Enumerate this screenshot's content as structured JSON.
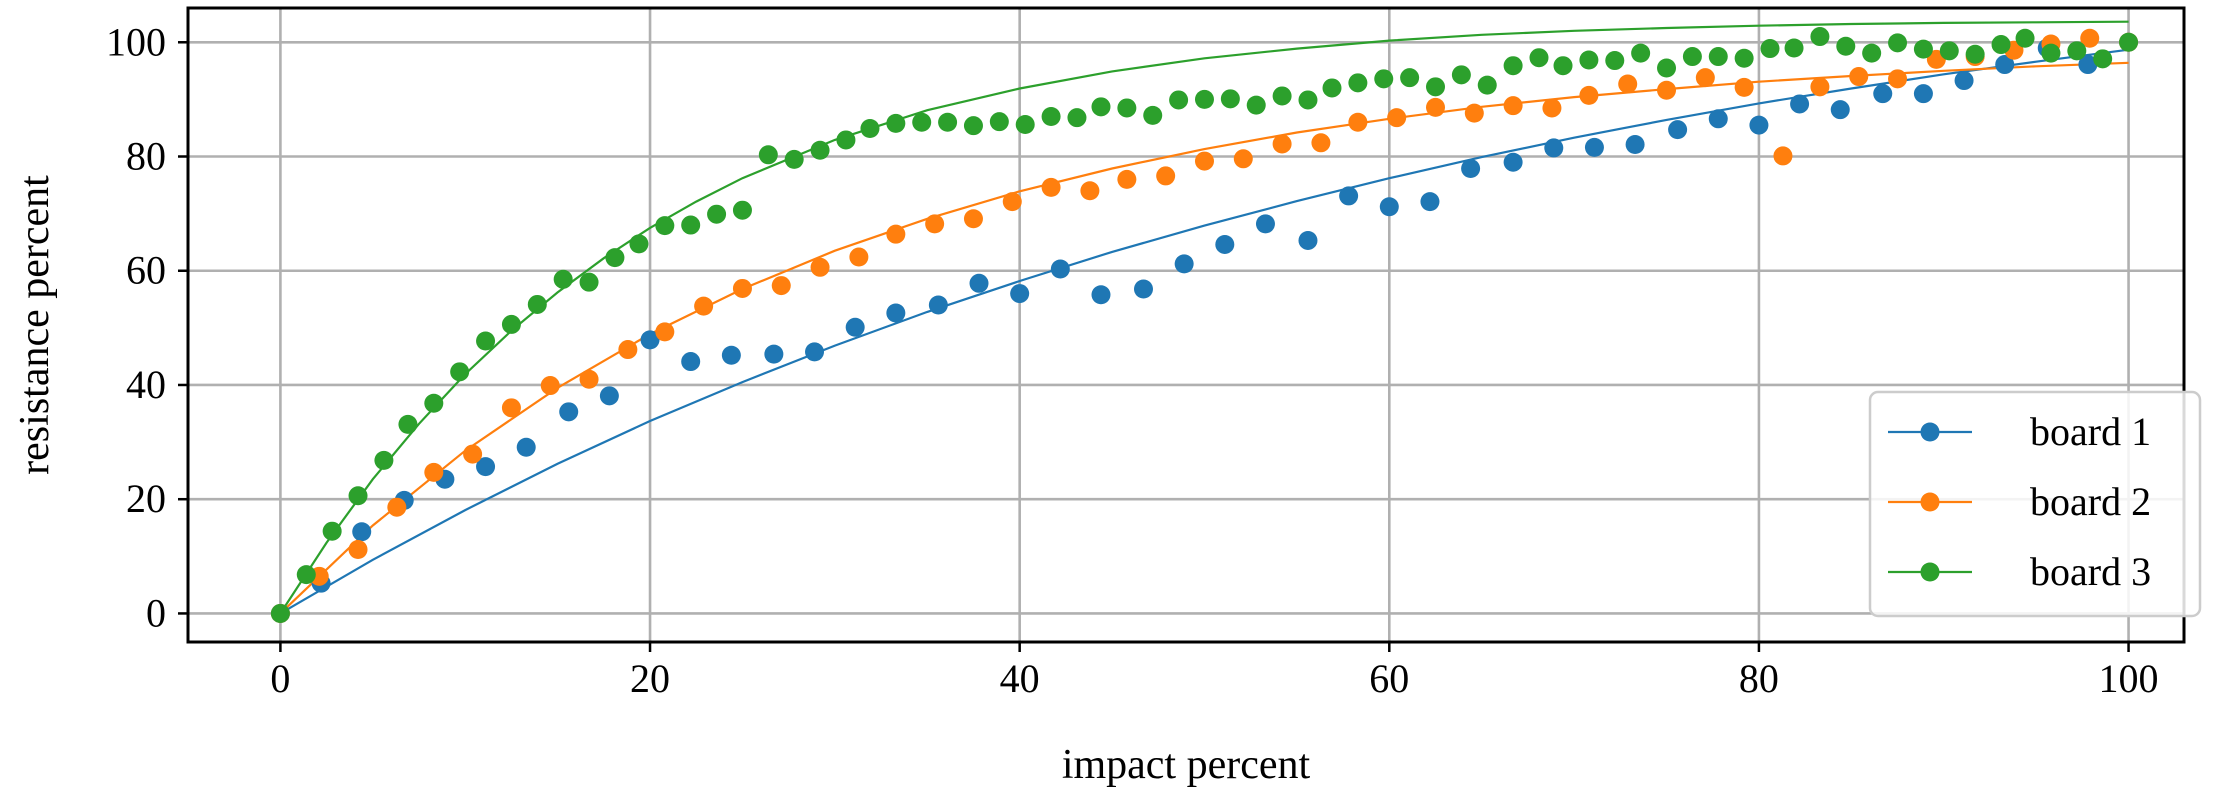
{
  "chart_data": {
    "type": "scatter",
    "xlabel": "impact percent",
    "ylabel": "resistance percent",
    "xlim": [
      -5,
      103
    ],
    "ylim": [
      -5,
      106
    ],
    "xticks": [
      0,
      20,
      40,
      60,
      80,
      100
    ],
    "yticks": [
      0,
      20,
      40,
      60,
      80,
      100
    ],
    "xtick_labels": [
      "0",
      "20",
      "40",
      "60",
      "80",
      "100"
    ],
    "ytick_labels": [
      "0",
      "20",
      "40",
      "60",
      "80",
      "100"
    ],
    "grid": true,
    "legend_position": "lower-right",
    "series": [
      {
        "name": "board 1",
        "color": "#1f77b4",
        "points": [
          [
            0,
            0
          ],
          [
            2.2,
            5.3
          ],
          [
            4.4,
            14.3
          ],
          [
            6.7,
            19.8
          ],
          [
            8.9,
            23.5
          ],
          [
            11.1,
            25.7
          ],
          [
            13.3,
            29.1
          ],
          [
            15.6,
            35.3
          ],
          [
            17.8,
            38.1
          ],
          [
            20,
            47.9
          ],
          [
            22.2,
            44.1
          ],
          [
            24.4,
            45.2
          ],
          [
            26.7,
            45.4
          ],
          [
            28.9,
            45.8
          ],
          [
            31.1,
            50.1
          ],
          [
            33.3,
            52.6
          ],
          [
            35.6,
            54
          ],
          [
            37.8,
            57.8
          ],
          [
            40,
            56
          ],
          [
            42.2,
            60.3
          ],
          [
            44.4,
            55.8
          ],
          [
            46.7,
            56.8
          ],
          [
            48.9,
            61.2
          ],
          [
            51.1,
            64.6
          ],
          [
            53.3,
            68.2
          ],
          [
            55.6,
            65.3
          ],
          [
            57.8,
            73.1
          ],
          [
            60,
            71.2
          ],
          [
            62.2,
            72.1
          ],
          [
            64.4,
            77.9
          ],
          [
            66.7,
            79
          ],
          [
            68.9,
            81.5
          ],
          [
            71.1,
            81.6
          ],
          [
            73.3,
            82.1
          ],
          [
            75.6,
            84.7
          ],
          [
            77.8,
            86.6
          ],
          [
            80,
            85.5
          ],
          [
            82.2,
            89.2
          ],
          [
            84.4,
            88.2
          ],
          [
            86.7,
            91
          ],
          [
            88.9,
            91
          ],
          [
            91.1,
            93.3
          ],
          [
            93.3,
            96.1
          ],
          [
            95.6,
            99
          ],
          [
            97.8,
            96.1
          ],
          [
            100,
            100
          ]
        ],
        "fit": [
          [
            0,
            0
          ],
          [
            5,
            9.4
          ],
          [
            10,
            18.1
          ],
          [
            15,
            26.2
          ],
          [
            20,
            33.7
          ],
          [
            25,
            40.5
          ],
          [
            30,
            46.9
          ],
          [
            35,
            52.8
          ],
          [
            40,
            58.2
          ],
          [
            45,
            63.3
          ],
          [
            50,
            67.9
          ],
          [
            55,
            72.2
          ],
          [
            60,
            76.2
          ],
          [
            65,
            79.9
          ],
          [
            70,
            83.3
          ],
          [
            75,
            86.4
          ],
          [
            80,
            89.3
          ],
          [
            85,
            91.9
          ],
          [
            90,
            94.4
          ],
          [
            95,
            96.6
          ],
          [
            100,
            98.7
          ]
        ]
      },
      {
        "name": "board 2",
        "color": "#ff7f0e",
        "points": [
          [
            0,
            0
          ],
          [
            2.1,
            6.5
          ],
          [
            4.2,
            11.2
          ],
          [
            6.3,
            18.6
          ],
          [
            8.3,
            24.7
          ],
          [
            10.4,
            27.9
          ],
          [
            12.5,
            36
          ],
          [
            14.6,
            39.9
          ],
          [
            16.7,
            41
          ],
          [
            18.8,
            46.2
          ],
          [
            20.8,
            49.3
          ],
          [
            22.9,
            53.8
          ],
          [
            25,
            56.9
          ],
          [
            27.1,
            57.4
          ],
          [
            29.2,
            60.6
          ],
          [
            31.3,
            62.4
          ],
          [
            33.3,
            66.4
          ],
          [
            35.4,
            68.2
          ],
          [
            37.5,
            69.1
          ],
          [
            39.6,
            72.1
          ],
          [
            41.7,
            74.6
          ],
          [
            43.8,
            74
          ],
          [
            45.8,
            76
          ],
          [
            47.9,
            76.6
          ],
          [
            50,
            79.2
          ],
          [
            52.1,
            79.6
          ],
          [
            54.2,
            82.2
          ],
          [
            56.3,
            82.4
          ],
          [
            58.3,
            86
          ],
          [
            60.4,
            86.8
          ],
          [
            62.5,
            88.6
          ],
          [
            64.6,
            87.6
          ],
          [
            66.7,
            88.9
          ],
          [
            68.8,
            88.5
          ],
          [
            70.8,
            90.7
          ],
          [
            72.9,
            92.7
          ],
          [
            75,
            91.6
          ],
          [
            77.1,
            93.8
          ],
          [
            79.2,
            92.1
          ],
          [
            81.3,
            80.1
          ],
          [
            83.3,
            92.2
          ],
          [
            85.4,
            94
          ],
          [
            87.5,
            93.6
          ],
          [
            89.6,
            97
          ],
          [
            91.7,
            97.5
          ],
          [
            93.8,
            98.6
          ],
          [
            95.8,
            99.7
          ],
          [
            97.9,
            100.7
          ],
          [
            100,
            100
          ]
        ],
        "fit": [
          [
            0,
            0
          ],
          [
            5,
            15.4
          ],
          [
            10,
            28.5
          ],
          [
            15,
            39.5
          ],
          [
            20,
            48.9
          ],
          [
            25,
            56.8
          ],
          [
            30,
            63.5
          ],
          [
            35,
            69.1
          ],
          [
            40,
            73.9
          ],
          [
            45,
            77.9
          ],
          [
            50,
            81.3
          ],
          [
            55,
            84.2
          ],
          [
            60,
            86.6
          ],
          [
            65,
            88.7
          ],
          [
            70,
            90.4
          ],
          [
            75,
            91.8
          ],
          [
            80,
            93.1
          ],
          [
            85,
            94.1
          ],
          [
            90,
            95
          ],
          [
            95,
            95.8
          ],
          [
            100,
            96.4
          ]
        ]
      },
      {
        "name": "board 3",
        "color": "#2ca02c",
        "points": [
          [
            0,
            0
          ],
          [
            1.4,
            6.8
          ],
          [
            2.8,
            14.4
          ],
          [
            4.2,
            20.6
          ],
          [
            5.6,
            26.8
          ],
          [
            6.9,
            33.1
          ],
          [
            8.3,
            36.8
          ],
          [
            9.7,
            42.3
          ],
          [
            11.1,
            47.7
          ],
          [
            12.5,
            50.6
          ],
          [
            13.9,
            54.1
          ],
          [
            15.3,
            58.5
          ],
          [
            16.7,
            58
          ],
          [
            18.1,
            62.3
          ],
          [
            19.4,
            64.7
          ],
          [
            20.8,
            67.9
          ],
          [
            22.2,
            68
          ],
          [
            23.6,
            69.9
          ],
          [
            25,
            70.6
          ],
          [
            26.4,
            80.3
          ],
          [
            27.8,
            79.5
          ],
          [
            29.2,
            81.1
          ],
          [
            30.6,
            82.9
          ],
          [
            31.9,
            84.9
          ],
          [
            33.3,
            85.8
          ],
          [
            34.7,
            86
          ],
          [
            36.1,
            86
          ],
          [
            37.5,
            85.4
          ],
          [
            38.9,
            86.1
          ],
          [
            40.3,
            85.6
          ],
          [
            41.7,
            87
          ],
          [
            43.1,
            86.8
          ],
          [
            44.4,
            88.7
          ],
          [
            45.8,
            88.5
          ],
          [
            47.2,
            87.2
          ],
          [
            48.6,
            89.9
          ],
          [
            50,
            90
          ],
          [
            51.4,
            90.1
          ],
          [
            52.8,
            89
          ],
          [
            54.2,
            90.6
          ],
          [
            55.6,
            89.9
          ],
          [
            56.9,
            92
          ],
          [
            58.3,
            92.9
          ],
          [
            59.7,
            93.6
          ],
          [
            61.1,
            93.8
          ],
          [
            62.5,
            92.2
          ],
          [
            63.9,
            94.3
          ],
          [
            65.3,
            92.5
          ],
          [
            66.7,
            95.9
          ],
          [
            68.1,
            97.3
          ],
          [
            69.4,
            95.9
          ],
          [
            70.8,
            96.9
          ],
          [
            72.2,
            96.8
          ],
          [
            73.6,
            98.1
          ],
          [
            75,
            95.5
          ],
          [
            76.4,
            97.5
          ],
          [
            77.8,
            97.5
          ],
          [
            79.2,
            97.2
          ],
          [
            80.6,
            98.9
          ],
          [
            81.9,
            99
          ],
          [
            83.3,
            101
          ],
          [
            84.7,
            99.3
          ],
          [
            86.1,
            98.1
          ],
          [
            87.5,
            99.9
          ],
          [
            88.9,
            98.8
          ],
          [
            90.3,
            98.5
          ],
          [
            91.7,
            97.9
          ],
          [
            93.1,
            99.6
          ],
          [
            94.4,
            100.7
          ],
          [
            95.8,
            98.1
          ],
          [
            97.2,
            98.5
          ],
          [
            98.6,
            97.1
          ],
          [
            100,
            100
          ]
        ],
        "fit": [
          [
            0,
            0
          ],
          [
            2.5,
            12.4
          ],
          [
            5,
            23.5
          ],
          [
            7.5,
            33.2
          ],
          [
            10,
            41.9
          ],
          [
            12.5,
            49.5
          ],
          [
            15,
            56.2
          ],
          [
            17.5,
            62.2
          ],
          [
            20,
            67.5
          ],
          [
            22.5,
            72.1
          ],
          [
            25,
            76.2
          ],
          [
            30,
            82.9
          ],
          [
            35,
            88.1
          ],
          [
            40,
            91.9
          ],
          [
            45,
            94.9
          ],
          [
            50,
            97.2
          ],
          [
            55,
            98.9
          ],
          [
            60,
            100.3
          ],
          [
            65,
            101.3
          ],
          [
            70,
            102
          ],
          [
            75,
            102.5
          ],
          [
            80,
            102.9
          ],
          [
            85,
            103.2
          ],
          [
            90,
            103.4
          ],
          [
            95,
            103.5
          ],
          [
            100,
            103.6
          ]
        ]
      }
    ]
  }
}
